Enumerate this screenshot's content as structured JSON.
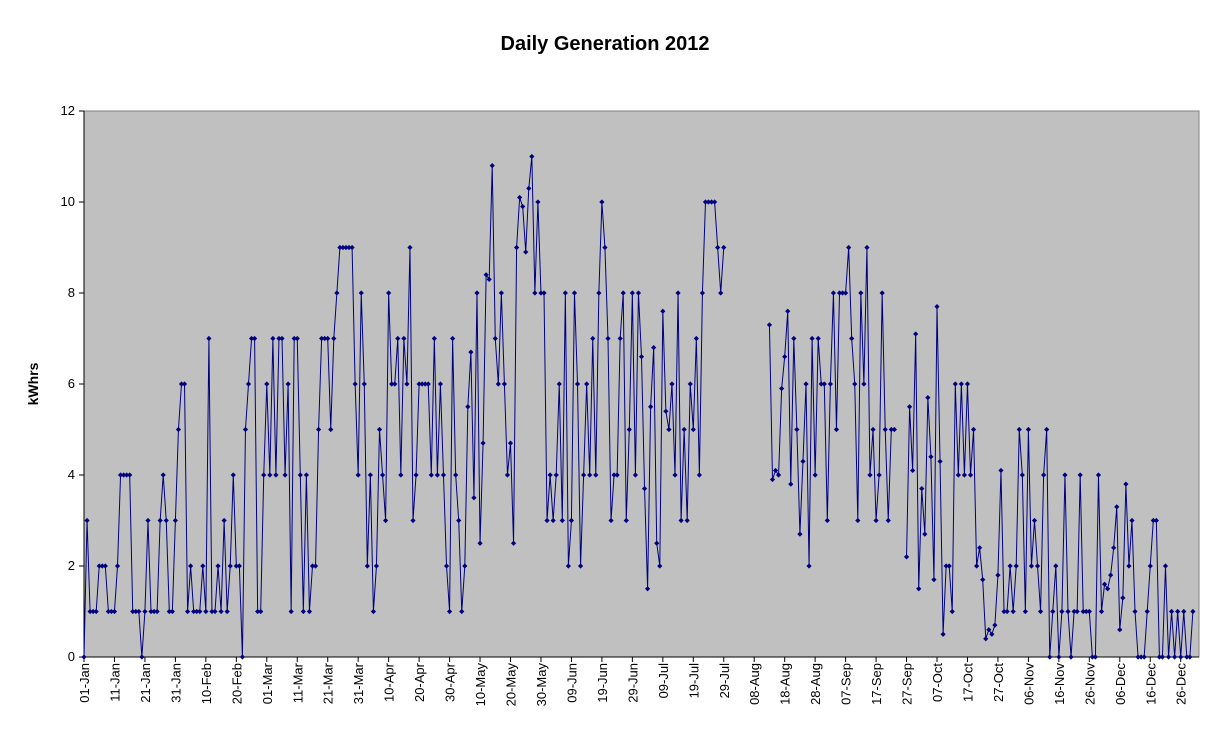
{
  "chart_data": {
    "type": "line",
    "title": "Daily Generation 2012",
    "ylabel": "kWhrs",
    "xlabel": "",
    "ylim": [
      0,
      12
    ],
    "yticks": [
      "0",
      "2",
      "4",
      "6",
      "8",
      "10",
      "12"
    ],
    "xticks": [
      "01-Jan",
      "11-Jan",
      "21-Jan",
      "31-Jan",
      "10-Feb",
      "20-Feb",
      "01-Mar",
      "11-Mar",
      "21-Mar",
      "31-Mar",
      "10-Apr",
      "20-Apr",
      "30-Apr",
      "10-May",
      "20-May",
      "30-May",
      "09-Jun",
      "19-Jun",
      "29-Jun",
      "09-Jul",
      "19-Jul",
      "29-Jul",
      "08-Aug",
      "18-Aug",
      "28-Aug",
      "07-Sep",
      "17-Sep",
      "27-Sep",
      "07-Oct",
      "17-Oct",
      "27-Oct",
      "06-Nov",
      "16-Nov",
      "26-Nov",
      "06-Dec",
      "16-Dec",
      "26-Dec"
    ],
    "grid": false,
    "background": "#c0c0c0",
    "line_color": "#000080",
    "series": [
      {
        "x_start": "01-Jan",
        "values": [
          0,
          3,
          1,
          1,
          1,
          2,
          2,
          2,
          1,
          1,
          1,
          2,
          4,
          4,
          4,
          4,
          1,
          1,
          1,
          0,
          1,
          3,
          1,
          1,
          1,
          3,
          4,
          3,
          1,
          1,
          3,
          5,
          6,
          6,
          1,
          2,
          1,
          1,
          1,
          2,
          1,
          7,
          1,
          1,
          2,
          1,
          3,
          1,
          2,
          4,
          2,
          2,
          0,
          5,
          6,
          7,
          7,
          1,
          1,
          4,
          6,
          4,
          7,
          4,
          7,
          7,
          4,
          6,
          1,
          7,
          7,
          4,
          1,
          4,
          1,
          2,
          2,
          5,
          7,
          7,
          7,
          5,
          7,
          8,
          9,
          9,
          9,
          9,
          9,
          6,
          4,
          8,
          6,
          2,
          4,
          1,
          2,
          5,
          4,
          3,
          8,
          6,
          6,
          7,
          4,
          7,
          6,
          9,
          3,
          4,
          6,
          6,
          6,
          6,
          4,
          7,
          4,
          6,
          4,
          2,
          1,
          7,
          4,
          3,
          1,
          2,
          5.5,
          6.7,
          3.5,
          8,
          2.5,
          4.7,
          8.4,
          8.3,
          10.8,
          7,
          6,
          8,
          6,
          4,
          4.7,
          2.5,
          9,
          10.1,
          9.9,
          8.9,
          10.3,
          11,
          8,
          10,
          8,
          8,
          3,
          4,
          3,
          4,
          6,
          3,
          8,
          2,
          3,
          8,
          6,
          2,
          4,
          6,
          4,
          7,
          4,
          8,
          10,
          9,
          7,
          3,
          4,
          4,
          7,
          8,
          3,
          5,
          8,
          4,
          8,
          6.6,
          3.7,
          1.5,
          5.5,
          6.8,
          2.5,
          2,
          7.6,
          5.4,
          5,
          6,
          4,
          8,
          3,
          5,
          3,
          6,
          5,
          7,
          4,
          8,
          10,
          10,
          10,
          10,
          9,
          8,
          9
        ]
      },
      {
        "x_start": "13-Aug",
        "values": [
          7.3,
          3.9,
          4.1,
          4,
          5.9,
          6.6,
          7.6,
          3.8,
          7,
          5,
          2.7,
          4.3,
          6,
          2,
          7,
          4,
          7,
          6,
          6,
          3,
          6,
          8,
          5,
          8,
          8,
          8,
          9,
          7,
          6,
          3,
          8,
          6,
          9,
          4,
          5,
          3,
          4,
          8,
          5,
          3,
          5,
          5
        ]
      },
      {
        "x_start": "27-Sep",
        "values": [
          2.2,
          5.5,
          4.1,
          7.1,
          1.5,
          3.7,
          2.7,
          5.7,
          4.4,
          1.7,
          7.7,
          4.3,
          0.5,
          2,
          2,
          1,
          6,
          4,
          6,
          4,
          6,
          4,
          5,
          2,
          2.4,
          1.7,
          0.4,
          0.6,
          0.5,
          0.7,
          1.8,
          4.1,
          1,
          1,
          2,
          1,
          2,
          5,
          4,
          1,
          5,
          2,
          3,
          2,
          1,
          4,
          5,
          0,
          1,
          2,
          0,
          1,
          4,
          1,
          0,
          1,
          1,
          4,
          1,
          1,
          1,
          0,
          0,
          4,
          1,
          1.6,
          1.5,
          1.8,
          2.4,
          3.3,
          0.6,
          1.3,
          3.8,
          2,
          3,
          1,
          0,
          0,
          0,
          1,
          2,
          3,
          3,
          0,
          0,
          2,
          0,
          1,
          0,
          1,
          0,
          1,
          0,
          0,
          1
        ]
      }
    ]
  }
}
